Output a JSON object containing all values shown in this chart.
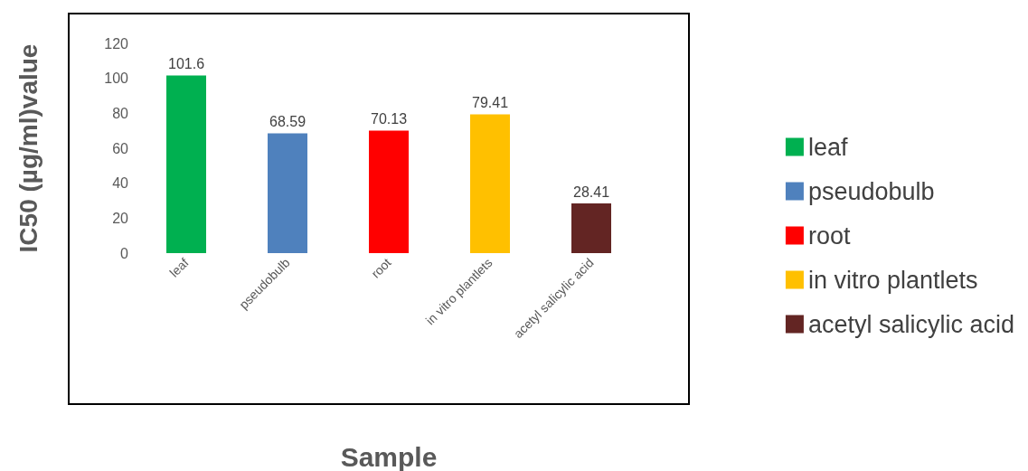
{
  "chart_data": {
    "type": "bar",
    "xlabel": "Sample",
    "ylabel": "IC50 (µg/ml)value",
    "categories": [
      "leaf",
      "pseudobulb",
      "root",
      "in vitro plantlets",
      "acetyl salicylic acid"
    ],
    "series": [
      {
        "name": "leaf",
        "color": "#00b050",
        "values": [
          101.6,
          null,
          null,
          null,
          null
        ]
      },
      {
        "name": "pseudobulb",
        "color": "#4f81bd",
        "values": [
          null,
          68.59,
          null,
          null,
          null
        ]
      },
      {
        "name": "root",
        "color": "#ff0000",
        "values": [
          null,
          null,
          70.13,
          null,
          null
        ]
      },
      {
        "name": "in vitro plantlets",
        "color": "#ffc000",
        "values": [
          null,
          null,
          null,
          79.41,
          null
        ]
      },
      {
        "name": "acetyl salicylic acid",
        "color": "#632523",
        "values": [
          null,
          null,
          null,
          null,
          28.41
        ]
      }
    ],
    "stacked": true,
    "ylim": [
      0,
      120
    ],
    "yticks": [
      0,
      20,
      40,
      60,
      80,
      100,
      120
    ],
    "grid": false,
    "legend": "right",
    "data_labels": true
  }
}
